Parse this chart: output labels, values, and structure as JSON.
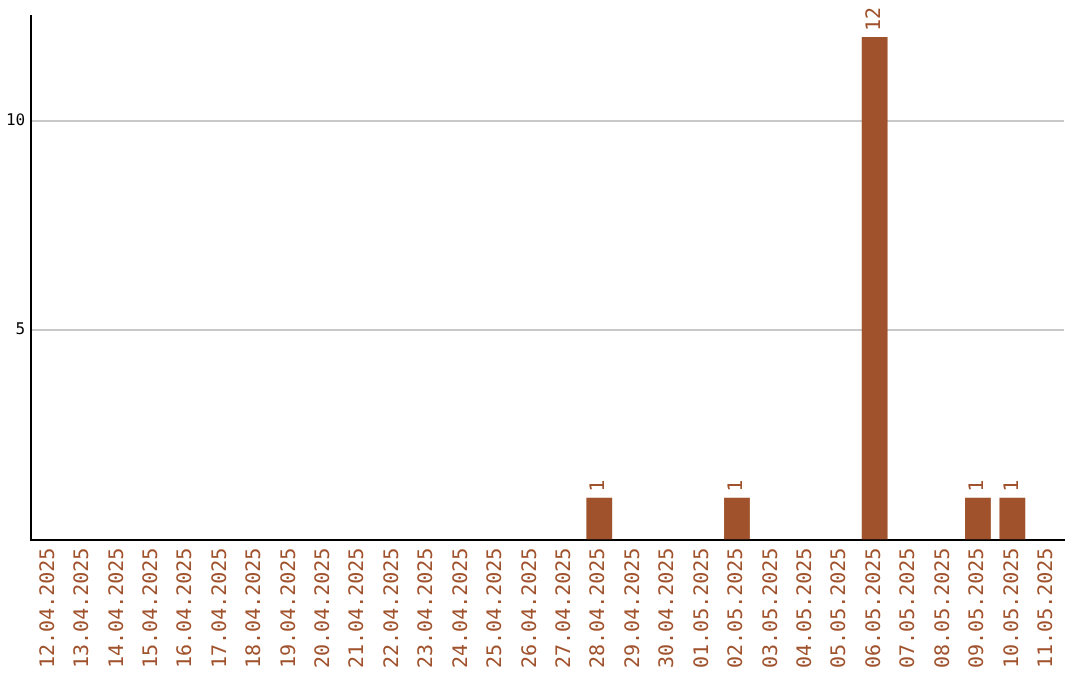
{
  "chart_data": {
    "type": "bar",
    "categories": [
      "12.04.2025",
      "13.04.2025",
      "14.04.2025",
      "15.04.2025",
      "16.04.2025",
      "17.04.2025",
      "18.04.2025",
      "19.04.2025",
      "20.04.2025",
      "21.04.2025",
      "22.04.2025",
      "23.04.2025",
      "24.04.2025",
      "25.04.2025",
      "26.04.2025",
      "27.04.2025",
      "28.04.2025",
      "29.04.2025",
      "30.04.2025",
      "01.05.2025",
      "02.05.2025",
      "03.05.2025",
      "04.05.2025",
      "05.05.2025",
      "06.05.2025",
      "07.05.2025",
      "08.05.2025",
      "09.05.2025",
      "10.05.2025",
      "11.05.2025"
    ],
    "values": [
      0,
      0,
      0,
      0,
      0,
      0,
      0,
      0,
      0,
      0,
      0,
      0,
      0,
      0,
      0,
      0,
      1,
      0,
      0,
      0,
      1,
      0,
      0,
      0,
      12,
      0,
      0,
      1,
      1,
      0
    ],
    "value_labels": [
      null,
      null,
      null,
      null,
      null,
      null,
      null,
      null,
      null,
      null,
      null,
      null,
      null,
      null,
      null,
      null,
      "1",
      null,
      null,
      null,
      "1",
      null,
      null,
      null,
      "12",
      null,
      null,
      "1",
      "1",
      null
    ],
    "color": "#a0522d",
    "ylim": [
      0,
      12.5
    ],
    "yticks": [
      5,
      10
    ],
    "grid": "y",
    "legend": false
  }
}
